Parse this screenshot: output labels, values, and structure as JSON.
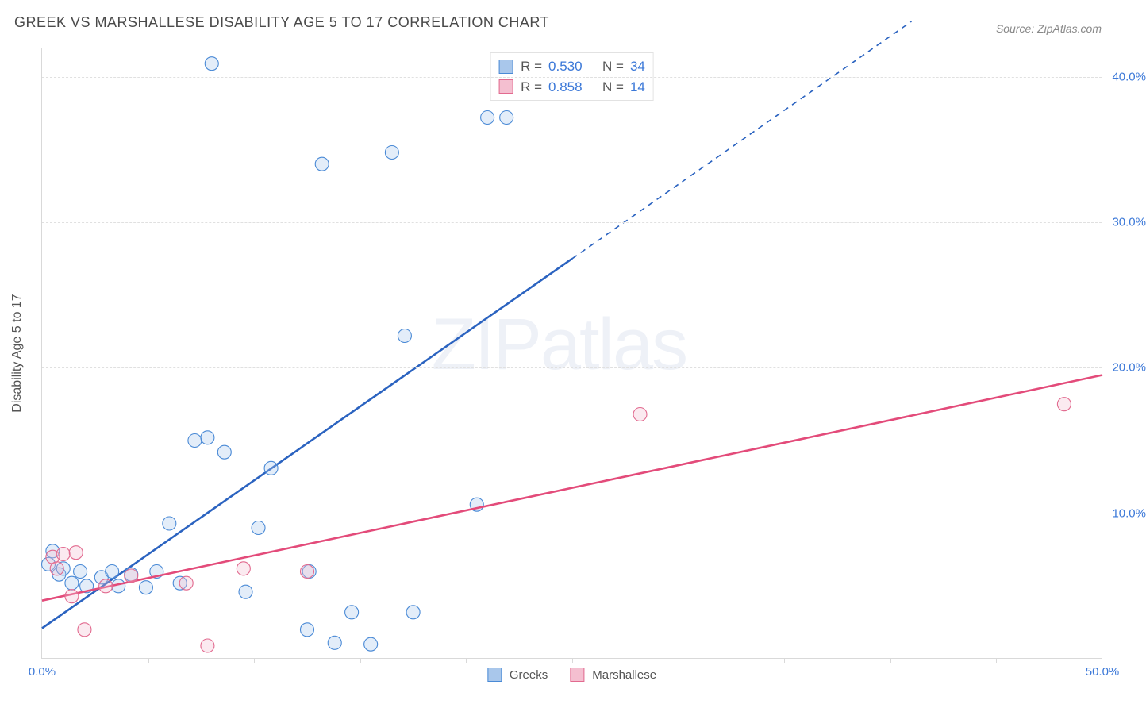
{
  "title": "GREEK VS MARSHALLESE DISABILITY AGE 5 TO 17 CORRELATION CHART",
  "source_prefix": "Source: ",
  "source_name": "ZipAtlas.com",
  "ylabel": "Disability Age 5 to 17",
  "watermark_a": "ZIP",
  "watermark_b": "atlas",
  "chart": {
    "type": "scatter",
    "xlim": [
      0,
      50
    ],
    "ylim": [
      0,
      42
    ],
    "x_tick_labels": [
      {
        "x": 0,
        "label": "0.0%"
      },
      {
        "x": 50,
        "label": "50.0%"
      }
    ],
    "x_minor_ticks": [
      5,
      10,
      15,
      20,
      25,
      30,
      35,
      40,
      45
    ],
    "y_tick_labels": [
      {
        "y": 10,
        "label": "10.0%"
      },
      {
        "y": 20,
        "label": "20.0%"
      },
      {
        "y": 30,
        "label": "30.0%"
      },
      {
        "y": 40,
        "label": "40.0%"
      }
    ],
    "background_color": "#ffffff",
    "grid_color": "#e0e0e0",
    "label_color": "#3b78d8",
    "marker_radius": 8.5,
    "marker_stroke_width": 1.1,
    "marker_fill_opacity": 0.32,
    "series": [
      {
        "name": "Greeks",
        "legend_label": "Greeks",
        "stroke": "#4a8ad6",
        "fill": "#a9c7eb",
        "line_color": "#2b63c0",
        "line_width": 2.6,
        "R": "0.530",
        "N": "34",
        "trend": {
          "x1": 0,
          "y1": 2.1,
          "x2": 25,
          "y2": 27.5,
          "dash_x2": 41,
          "dash_y2": 43.8
        },
        "points": [
          {
            "x": 0.3,
            "y": 6.5
          },
          {
            "x": 0.8,
            "y": 5.8
          },
          {
            "x": 0.5,
            "y": 7.4
          },
          {
            "x": 1.0,
            "y": 6.2
          },
          {
            "x": 1.4,
            "y": 5.2
          },
          {
            "x": 1.8,
            "y": 6.0
          },
          {
            "x": 2.1,
            "y": 5.0
          },
          {
            "x": 2.8,
            "y": 5.6
          },
          {
            "x": 3.3,
            "y": 6.0
          },
          {
            "x": 3.6,
            "y": 5.0
          },
          {
            "x": 4.2,
            "y": 5.8
          },
          {
            "x": 4.9,
            "y": 4.9
          },
          {
            "x": 5.4,
            "y": 6.0
          },
          {
            "x": 6.5,
            "y": 5.2
          },
          {
            "x": 6.0,
            "y": 9.3
          },
          {
            "x": 7.2,
            "y": 15.0
          },
          {
            "x": 7.8,
            "y": 15.2
          },
          {
            "x": 8.0,
            "y": 40.9
          },
          {
            "x": 8.6,
            "y": 14.2
          },
          {
            "x": 9.6,
            "y": 4.6
          },
          {
            "x": 10.2,
            "y": 9.0
          },
          {
            "x": 10.8,
            "y": 13.1
          },
          {
            "x": 12.5,
            "y": 2.0
          },
          {
            "x": 12.6,
            "y": 6.0
          },
          {
            "x": 13.2,
            "y": 34.0
          },
          {
            "x": 13.8,
            "y": 1.1
          },
          {
            "x": 14.6,
            "y": 3.2
          },
          {
            "x": 15.5,
            "y": 1.0
          },
          {
            "x": 16.5,
            "y": 34.8
          },
          {
            "x": 17.1,
            "y": 22.2
          },
          {
            "x": 17.5,
            "y": 3.2
          },
          {
            "x": 20.5,
            "y": 10.6
          },
          {
            "x": 21.0,
            "y": 37.2
          },
          {
            "x": 21.9,
            "y": 37.2
          }
        ]
      },
      {
        "name": "Marshallese",
        "legend_label": "Marshallese",
        "stroke": "#e26a8f",
        "fill": "#f4bfd0",
        "line_color": "#e34b7a",
        "line_width": 2.6,
        "R": "0.858",
        "N": "14",
        "trend": {
          "x1": 0,
          "y1": 4.0,
          "x2": 50,
          "y2": 19.5
        },
        "points": [
          {
            "x": 0.5,
            "y": 7.0
          },
          {
            "x": 0.7,
            "y": 6.2
          },
          {
            "x": 1.0,
            "y": 7.2
          },
          {
            "x": 1.4,
            "y": 4.3
          },
          {
            "x": 1.6,
            "y": 7.3
          },
          {
            "x": 2.0,
            "y": 2.0
          },
          {
            "x": 3.0,
            "y": 5.0
          },
          {
            "x": 4.2,
            "y": 5.7
          },
          {
            "x": 6.8,
            "y": 5.2
          },
          {
            "x": 7.8,
            "y": 0.9
          },
          {
            "x": 9.5,
            "y": 6.2
          },
          {
            "x": 12.5,
            "y": 6.0
          },
          {
            "x": 28.2,
            "y": 16.8
          },
          {
            "x": 48.2,
            "y": 17.5
          }
        ]
      }
    ],
    "legend_stats_labels": {
      "R": "R =",
      "N": "N ="
    }
  }
}
